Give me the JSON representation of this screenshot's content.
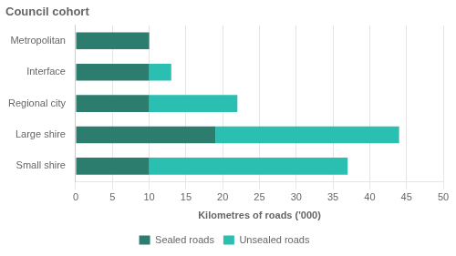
{
  "chart_data": {
    "type": "bar",
    "orientation": "horizontal",
    "stacked": true,
    "title": "Council cohort",
    "xlabel": "Kilometres of roads ('000)",
    "categories": [
      "Small shire",
      "Large shire",
      "Regional city",
      "Interface",
      "Metropolitan"
    ],
    "series": [
      {
        "name": "Sealed roads",
        "color": "#2d7d6e",
        "values": [
          10,
          19,
          10,
          10,
          10
        ]
      },
      {
        "name": "Unsealed roads",
        "color": "#2abfb0",
        "values": [
          27,
          25,
          12,
          3,
          0
        ]
      }
    ],
    "xlim": [
      0,
      50
    ],
    "xticks": [
      0,
      5,
      10,
      15,
      20,
      25,
      30,
      35,
      40,
      45,
      50
    ],
    "grid": true,
    "legend": "bottom"
  }
}
